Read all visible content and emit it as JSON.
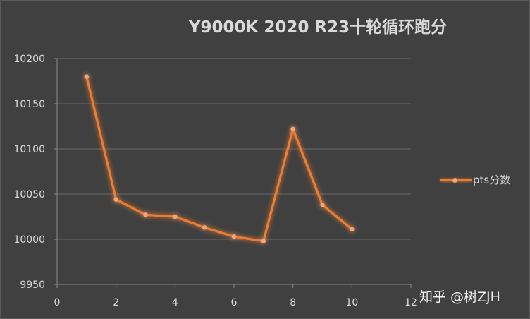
{
  "chart_data": {
    "type": "scatter",
    "title": "Y9000K 2020 R23十轮循环跑分",
    "series": [
      {
        "name": "pts分数",
        "x": [
          1,
          2,
          3,
          4,
          5,
          6,
          7,
          8,
          9,
          10
        ],
        "y": [
          10180,
          10044,
          10027,
          10025,
          10013,
          10003,
          9998,
          10122,
          10038,
          10011
        ]
      }
    ],
    "xlim": [
      0,
      12
    ],
    "ylim": [
      9950,
      10200
    ],
    "x_ticks": [
      0,
      2,
      4,
      6,
      8,
      10,
      12
    ],
    "y_ticks": [
      9950,
      10000,
      10050,
      10100,
      10150,
      10200
    ],
    "grid": "horizontal",
    "legend_position": "right",
    "colors": {
      "line": "#ed7d31",
      "marker": "#f4a672",
      "background": "#404040",
      "text": "#d9d9d9"
    }
  },
  "watermark": "知乎 @树ZJH"
}
